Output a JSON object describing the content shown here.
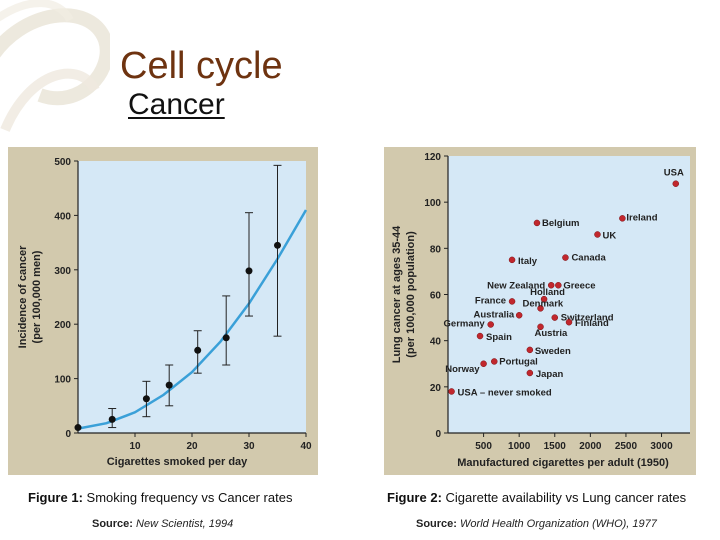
{
  "slide": {
    "title": "Cell cycle",
    "subtitle": "Cancer"
  },
  "colors": {
    "panel_bg": "#d2c9ad",
    "plot_bg": "#d5e8f6",
    "curve": "#3aa0d8",
    "point_left": "#111111",
    "point_right": "#c1272d",
    "title": "#6e3310"
  },
  "figure1": {
    "caption_label": "Figure 1:",
    "caption_text": "Smoking frequency vs Cancer rates",
    "source_label": "Source:",
    "source_text": "New Scientist, 1994"
  },
  "figure2": {
    "caption_label": "Figure 2:",
    "caption_text": "Cigarette availability vs Lung cancer rates",
    "source_label": "Source:",
    "source_text": "World Health Organization (WHO), 1977"
  },
  "chart_data": [
    {
      "type": "scatter",
      "xlabel": "Cigarettes smoked per day",
      "ylabel_line1": "Incidence of cancer",
      "ylabel_line2": "(per 100,000 men)",
      "xlim": [
        0,
        40
      ],
      "ylim": [
        0,
        500
      ],
      "xticks": [
        10,
        20,
        30,
        40
      ],
      "yticks": [
        0,
        100,
        200,
        300,
        400,
        500
      ],
      "points": [
        {
          "x": 0,
          "y": 10,
          "lo": 10,
          "hi": 10
        },
        {
          "x": 6,
          "y": 25,
          "lo": 10,
          "hi": 45
        },
        {
          "x": 12,
          "y": 63,
          "lo": 30,
          "hi": 95
        },
        {
          "x": 16,
          "y": 88,
          "lo": 50,
          "hi": 125
        },
        {
          "x": 21,
          "y": 152,
          "lo": 110,
          "hi": 188
        },
        {
          "x": 26,
          "y": 175,
          "lo": 125,
          "hi": 252
        },
        {
          "x": 30,
          "y": 298,
          "lo": 215,
          "hi": 405
        },
        {
          "x": 35,
          "y": 345,
          "lo": 178,
          "hi": 492
        }
      ],
      "trend": {
        "x": [
          0,
          5,
          10,
          15,
          20,
          25,
          30,
          35,
          40
        ],
        "y": [
          8,
          18,
          38,
          70,
          112,
          168,
          238,
          320,
          410
        ]
      }
    },
    {
      "type": "scatter",
      "xlabel": "Manufactured cigarettes per adult (1950)",
      "ylabel_line1": "Lung cancer at ages 35-44",
      "ylabel_line2": "(per 100,000 population)",
      "xlim": [
        0,
        3400
      ],
      "ylim": [
        0,
        120
      ],
      "xticks": [
        500,
        1000,
        1500,
        2000,
        2500,
        3000
      ],
      "yticks": [
        0,
        20,
        40,
        60,
        80,
        100,
        120
      ],
      "points": [
        {
          "label": "USA",
          "x": 3200,
          "y": 108
        },
        {
          "label": "Ireland",
          "x": 2450,
          "y": 93
        },
        {
          "label": "Belgium",
          "x": 1250,
          "y": 91
        },
        {
          "label": "UK",
          "x": 2100,
          "y": 86
        },
        {
          "label": "Canada",
          "x": 1650,
          "y": 76
        },
        {
          "label": "Italy",
          "x": 900,
          "y": 75
        },
        {
          "label": "New Zealand",
          "x": 1450,
          "y": 64
        },
        {
          "label": "Greece",
          "x": 1550,
          "y": 64
        },
        {
          "label": "Holland",
          "x": 1350,
          "y": 58
        },
        {
          "label": "France",
          "x": 900,
          "y": 57
        },
        {
          "label": "Denmark",
          "x": 1300,
          "y": 54
        },
        {
          "label": "Australia",
          "x": 1000,
          "y": 51
        },
        {
          "label": "Switzerland",
          "x": 1500,
          "y": 50
        },
        {
          "label": "Finland",
          "x": 1700,
          "y": 48
        },
        {
          "label": "Germany",
          "x": 600,
          "y": 47
        },
        {
          "label": "Austria",
          "x": 1300,
          "y": 46
        },
        {
          "label": "Spain",
          "x": 450,
          "y": 42
        },
        {
          "label": "Sweden",
          "x": 1150,
          "y": 36
        },
        {
          "label": "Portugal",
          "x": 650,
          "y": 31
        },
        {
          "label": "Norway",
          "x": 500,
          "y": 30
        },
        {
          "label": "Japan",
          "x": 1150,
          "y": 26
        },
        {
          "label": "USA – never smoked",
          "x": 50,
          "y": 18
        }
      ]
    }
  ]
}
